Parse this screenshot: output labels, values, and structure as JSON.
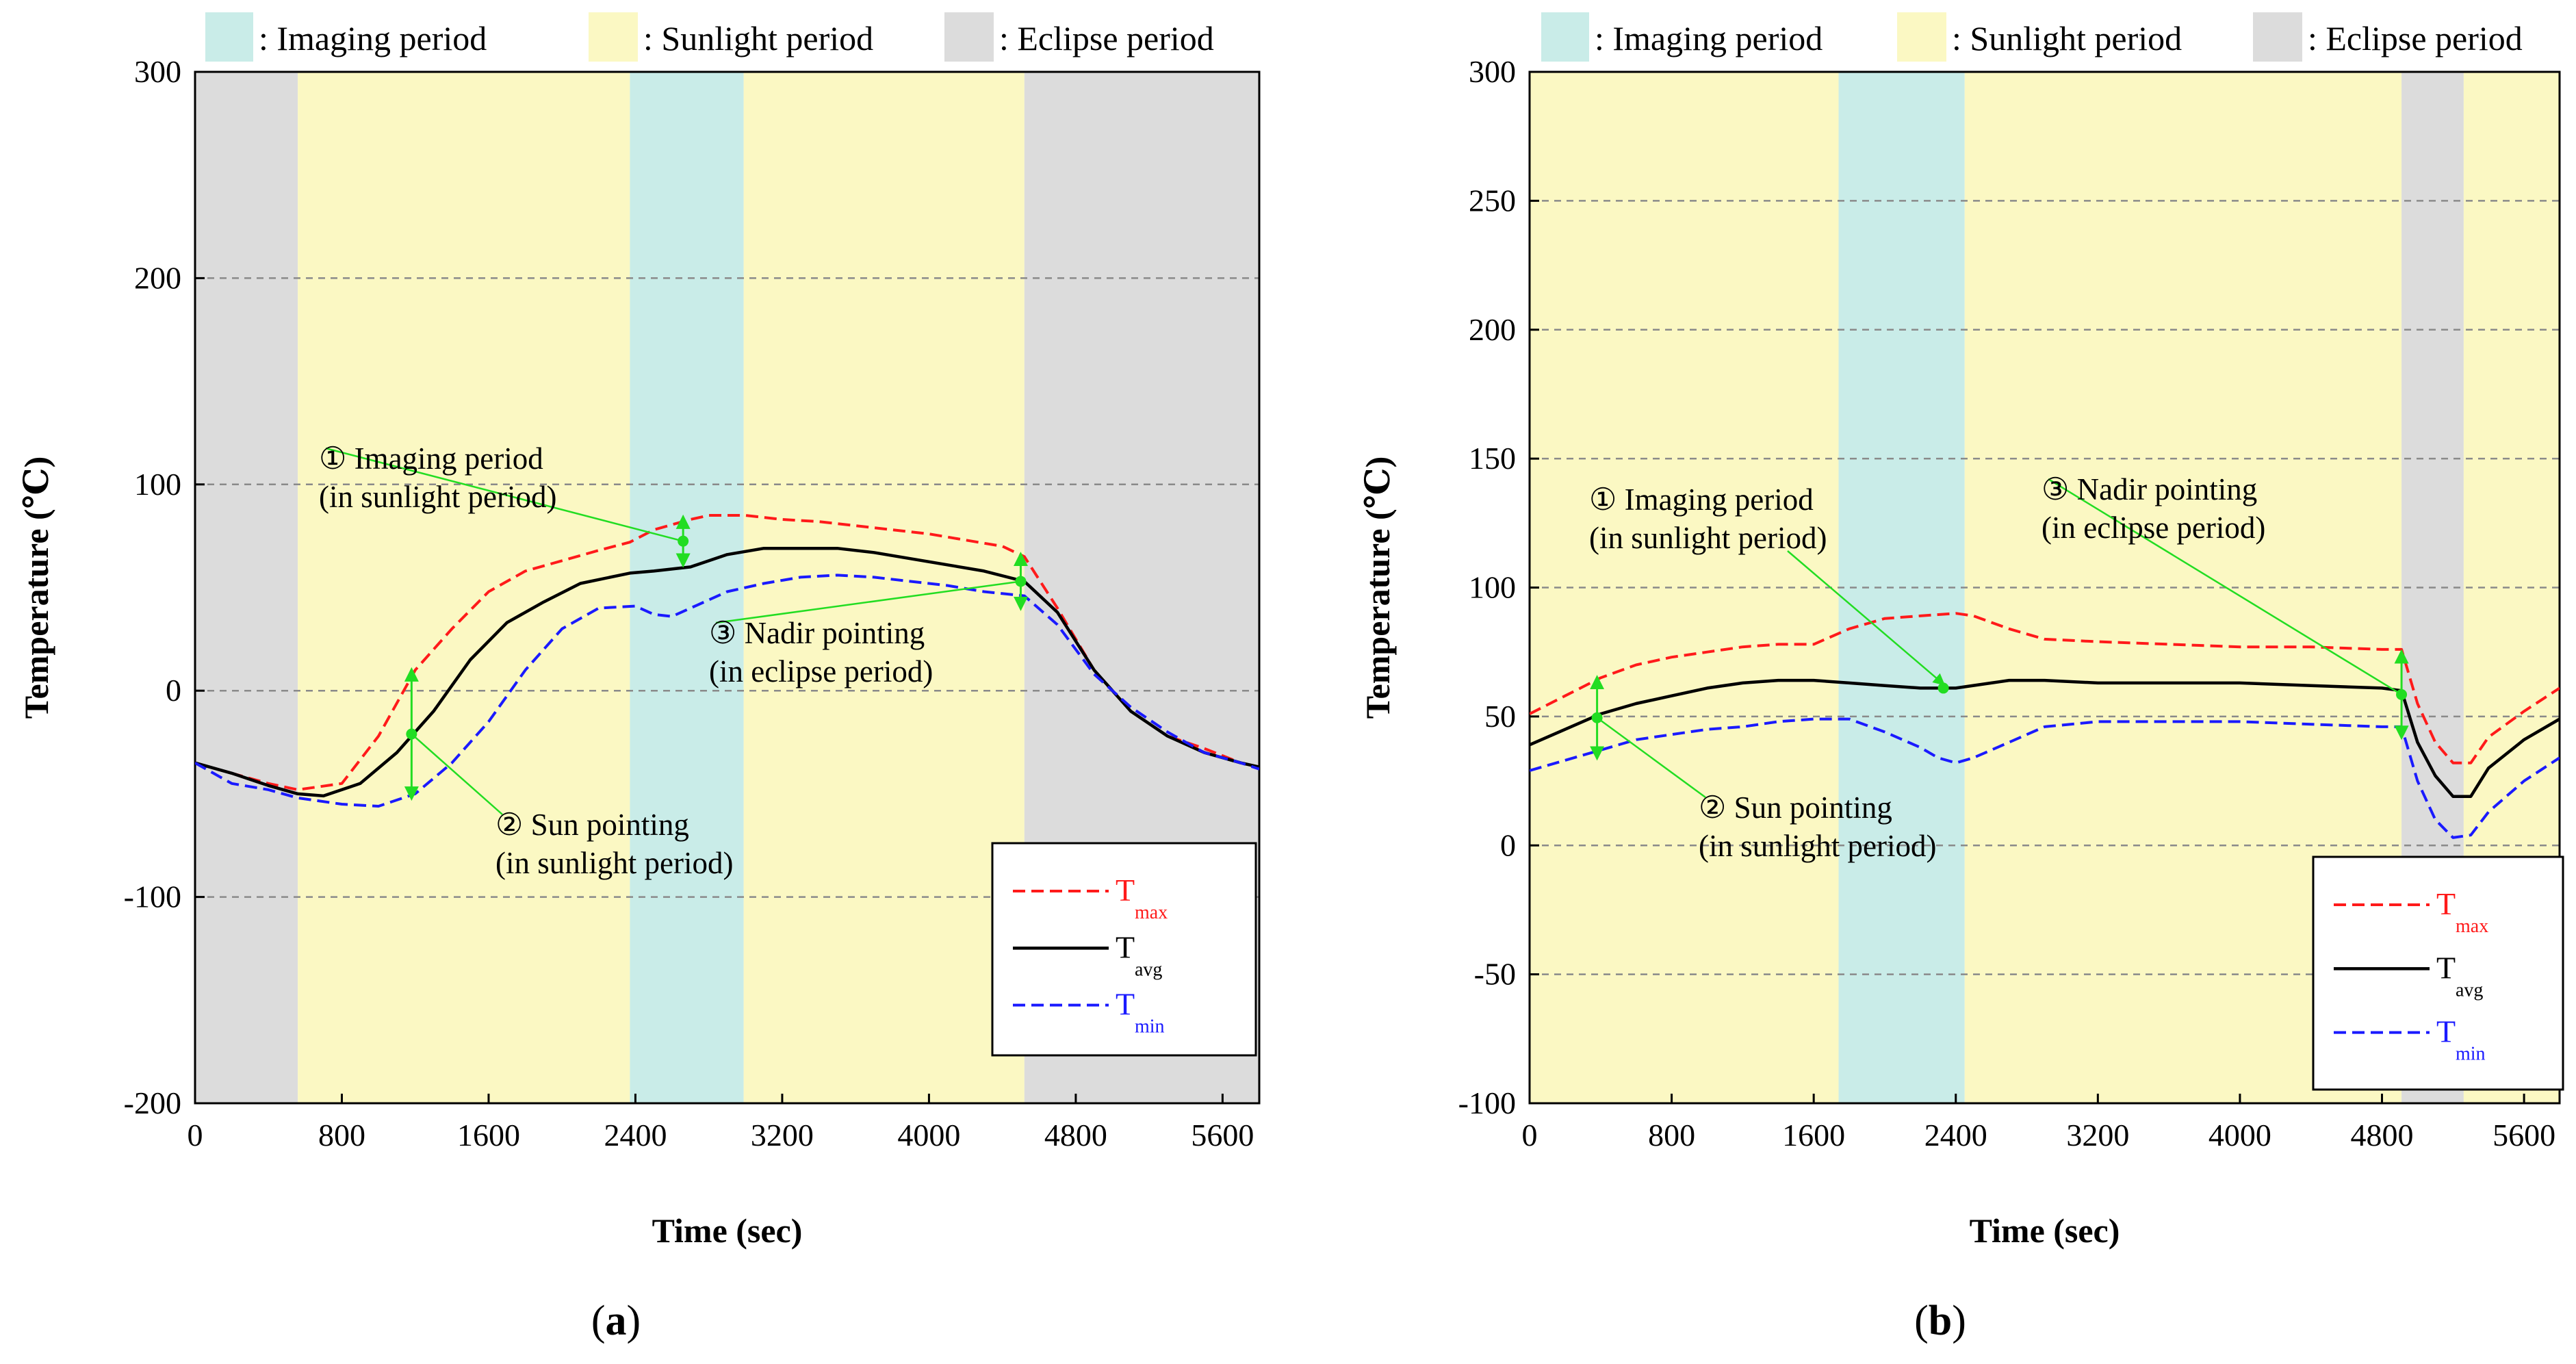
{
  "legend_top": [
    {
      "label": ": Imaging period",
      "color": "#c9ece8"
    },
    {
      "label": ": Sunlight period",
      "color": "#fbf8c3"
    },
    {
      "label": ": Eclipse period",
      "color": "#dcdcdc"
    }
  ],
  "colors": {
    "imaging": "#c9ece8",
    "sunlight": "#fbf8c3",
    "eclipse": "#dcdcdc",
    "tmax": "#ff1a1a",
    "tavg": "#000000",
    "tmin": "#1a1aff",
    "annotation": "#22dd22"
  },
  "chart_data": [
    {
      "type": "line",
      "panel_label": "(a)",
      "panel_letter": "a",
      "xlabel": "Time (sec)",
      "ylabel": "Temperature (℃)",
      "xlim": [
        0,
        5800
      ],
      "ylim": [
        -200,
        300
      ],
      "xticks": [
        0,
        800,
        1600,
        2400,
        3200,
        4000,
        4800,
        5600
      ],
      "yticks": [
        -200,
        -100,
        0,
        100,
        200,
        300
      ],
      "grid": "horizontal dashed",
      "legend_position": "bottom-right",
      "periods": [
        {
          "type": "eclipse",
          "start": 0,
          "end": 560
        },
        {
          "type": "sunlight",
          "start": 560,
          "end": 2370
        },
        {
          "type": "imaging",
          "start": 2370,
          "end": 2990
        },
        {
          "type": "sunlight",
          "start": 2990,
          "end": 4520
        },
        {
          "type": "eclipse",
          "start": 4520,
          "end": 5800
        }
      ],
      "series": [
        {
          "name": "T",
          "sub": "max",
          "style": "dashed",
          "color": "#ff1a1a",
          "x": [
            0,
            200,
            400,
            560,
            800,
            1000,
            1200,
            1400,
            1600,
            1800,
            2000,
            2200,
            2370,
            2500,
            2700,
            2800,
            3000,
            3200,
            3400,
            3600,
            3800,
            4000,
            4200,
            4400,
            4520,
            4700,
            4900,
            5100,
            5300,
            5500,
            5700,
            5800
          ],
          "y": [
            -35,
            -40,
            -45,
            -48,
            -45,
            -22,
            10,
            30,
            48,
            58,
            63,
            68,
            72,
            78,
            83,
            85,
            85,
            83,
            82,
            80,
            78,
            76,
            73,
            70,
            65,
            40,
            10,
            -10,
            -22,
            -28,
            -35,
            -37
          ]
        },
        {
          "name": "T",
          "sub": "avg",
          "style": "solid",
          "color": "#000000",
          "x": [
            0,
            200,
            400,
            560,
            700,
            900,
            1100,
            1300,
            1500,
            1700,
            1900,
            2100,
            2370,
            2500,
            2700,
            2900,
            3100,
            3300,
            3500,
            3700,
            3900,
            4100,
            4300,
            4520,
            4700,
            4900,
            5100,
            5300,
            5500,
            5700,
            5800
          ],
          "y": [
            -35,
            -40,
            -46,
            -50,
            -51,
            -45,
            -30,
            -10,
            15,
            33,
            43,
            52,
            57,
            58,
            60,
            66,
            69,
            69,
            69,
            67,
            64,
            61,
            58,
            53,
            38,
            10,
            -10,
            -22,
            -30,
            -35,
            -37
          ]
        },
        {
          "name": "T",
          "sub": "min",
          "style": "dashed",
          "color": "#1a1aff",
          "x": [
            0,
            200,
            400,
            560,
            800,
            1000,
            1200,
            1400,
            1600,
            1800,
            2000,
            2200,
            2400,
            2500,
            2600,
            2700,
            2900,
            3100,
            3300,
            3500,
            3700,
            3900,
            4100,
            4300,
            4520,
            4700,
            4900,
            5100,
            5300,
            5500,
            5700,
            5800
          ],
          "y": [
            -35,
            -45,
            -48,
            -52,
            -55,
            -56,
            -50,
            -35,
            -15,
            10,
            30,
            40,
            41,
            37,
            36,
            40,
            48,
            52,
            55,
            56,
            55,
            53,
            51,
            48,
            46,
            32,
            8,
            -8,
            -20,
            -30,
            -35,
            -38
          ]
        }
      ],
      "annotations": [
        {
          "id": "a1",
          "lines": [
            "① Imaging period",
            "(in sunlight period)"
          ],
          "x": 2660,
          "y_top": 84,
          "y_bottom": 61
        },
        {
          "id": "a2",
          "lines": [
            "② Sun pointing",
            "(in sunlight period)"
          ],
          "x": 1180,
          "y_top": 10,
          "y_bottom": -52
        },
        {
          "id": "a3",
          "lines": [
            "③ Nadir pointing",
            "(in eclipse period)"
          ],
          "x": 4500,
          "y_top": 66,
          "y_bottom": 40
        }
      ]
    },
    {
      "type": "line",
      "panel_label": "(b)",
      "panel_letter": "b",
      "xlabel": "Time (sec)",
      "ylabel": "Temperature (℃)",
      "xlim": [
        0,
        5800
      ],
      "ylim": [
        -100,
        300
      ],
      "xticks": [
        0,
        800,
        1600,
        2400,
        3200,
        4000,
        4800,
        5600
      ],
      "yticks": [
        -100,
        -50,
        0,
        50,
        100,
        150,
        200,
        250,
        300
      ],
      "grid": "horizontal dashed",
      "legend_position": "bottom-right",
      "periods": [
        {
          "type": "sunlight",
          "start": 0,
          "end": 1740
        },
        {
          "type": "imaging",
          "start": 1740,
          "end": 2450
        },
        {
          "type": "sunlight",
          "start": 2450,
          "end": 4910
        },
        {
          "type": "eclipse",
          "start": 4910,
          "end": 5260
        },
        {
          "type": "sunlight",
          "start": 5260,
          "end": 5800
        }
      ],
      "series": [
        {
          "name": "T",
          "sub": "max",
          "style": "dashed",
          "color": "#ff1a1a",
          "x": [
            0,
            200,
            400,
            600,
            800,
            1000,
            1200,
            1400,
            1600,
            1800,
            2000,
            2200,
            2400,
            2500,
            2700,
            2900,
            3200,
            3600,
            4000,
            4400,
            4800,
            4910,
            5000,
            5100,
            5200,
            5300,
            5400,
            5600,
            5800
          ],
          "y": [
            51,
            58,
            65,
            70,
            73,
            75,
            77,
            78,
            78,
            84,
            88,
            89,
            90,
            89,
            84,
            80,
            79,
            78,
            77,
            77,
            76,
            76,
            55,
            40,
            32,
            32,
            42,
            52,
            61
          ]
        },
        {
          "name": "T",
          "sub": "avg",
          "style": "solid",
          "color": "#000000",
          "x": [
            0,
            200,
            400,
            600,
            800,
            1000,
            1200,
            1400,
            1600,
            1800,
            2000,
            2200,
            2400,
            2600,
            2700,
            2900,
            3200,
            3600,
            4000,
            4400,
            4800,
            4910,
            5000,
            5100,
            5200,
            5300,
            5400,
            5600,
            5800
          ],
          "y": [
            39,
            45,
            51,
            55,
            58,
            61,
            63,
            64,
            64,
            63,
            62,
            61,
            61,
            63,
            64,
            64,
            63,
            63,
            63,
            62,
            61,
            60,
            40,
            27,
            19,
            19,
            30,
            41,
            49
          ]
        },
        {
          "name": "T",
          "sub": "min",
          "style": "dashed",
          "color": "#1a1aff",
          "x": [
            0,
            200,
            400,
            600,
            800,
            1000,
            1200,
            1400,
            1600,
            1800,
            2000,
            2200,
            2300,
            2400,
            2500,
            2700,
            2900,
            3200,
            3600,
            4000,
            4400,
            4800,
            4910,
            5000,
            5100,
            5200,
            5300,
            5400,
            5600,
            5800
          ],
          "y": [
            29,
            33,
            37,
            41,
            43,
            45,
            46,
            48,
            49,
            49,
            44,
            38,
            34,
            32,
            34,
            40,
            46,
            48,
            48,
            48,
            47,
            46,
            46,
            25,
            10,
            3,
            4,
            13,
            25,
            34
          ]
        }
      ],
      "annotations": [
        {
          "id": "b1",
          "lines": [
            "① Imaging period",
            "(in sunlight period)"
          ],
          "x": 2330,
          "y_top": null,
          "y_bottom": null
        },
        {
          "id": "b2",
          "lines": [
            "② Sun pointing",
            "(in sunlight period)"
          ],
          "x": 380,
          "y_top": 65,
          "y_bottom": 34
        },
        {
          "id": "b3",
          "lines": [
            "③ Nadir pointing",
            "(in eclipse period)"
          ],
          "x": 4910,
          "y_top": 75,
          "y_bottom": 42
        }
      ]
    }
  ]
}
